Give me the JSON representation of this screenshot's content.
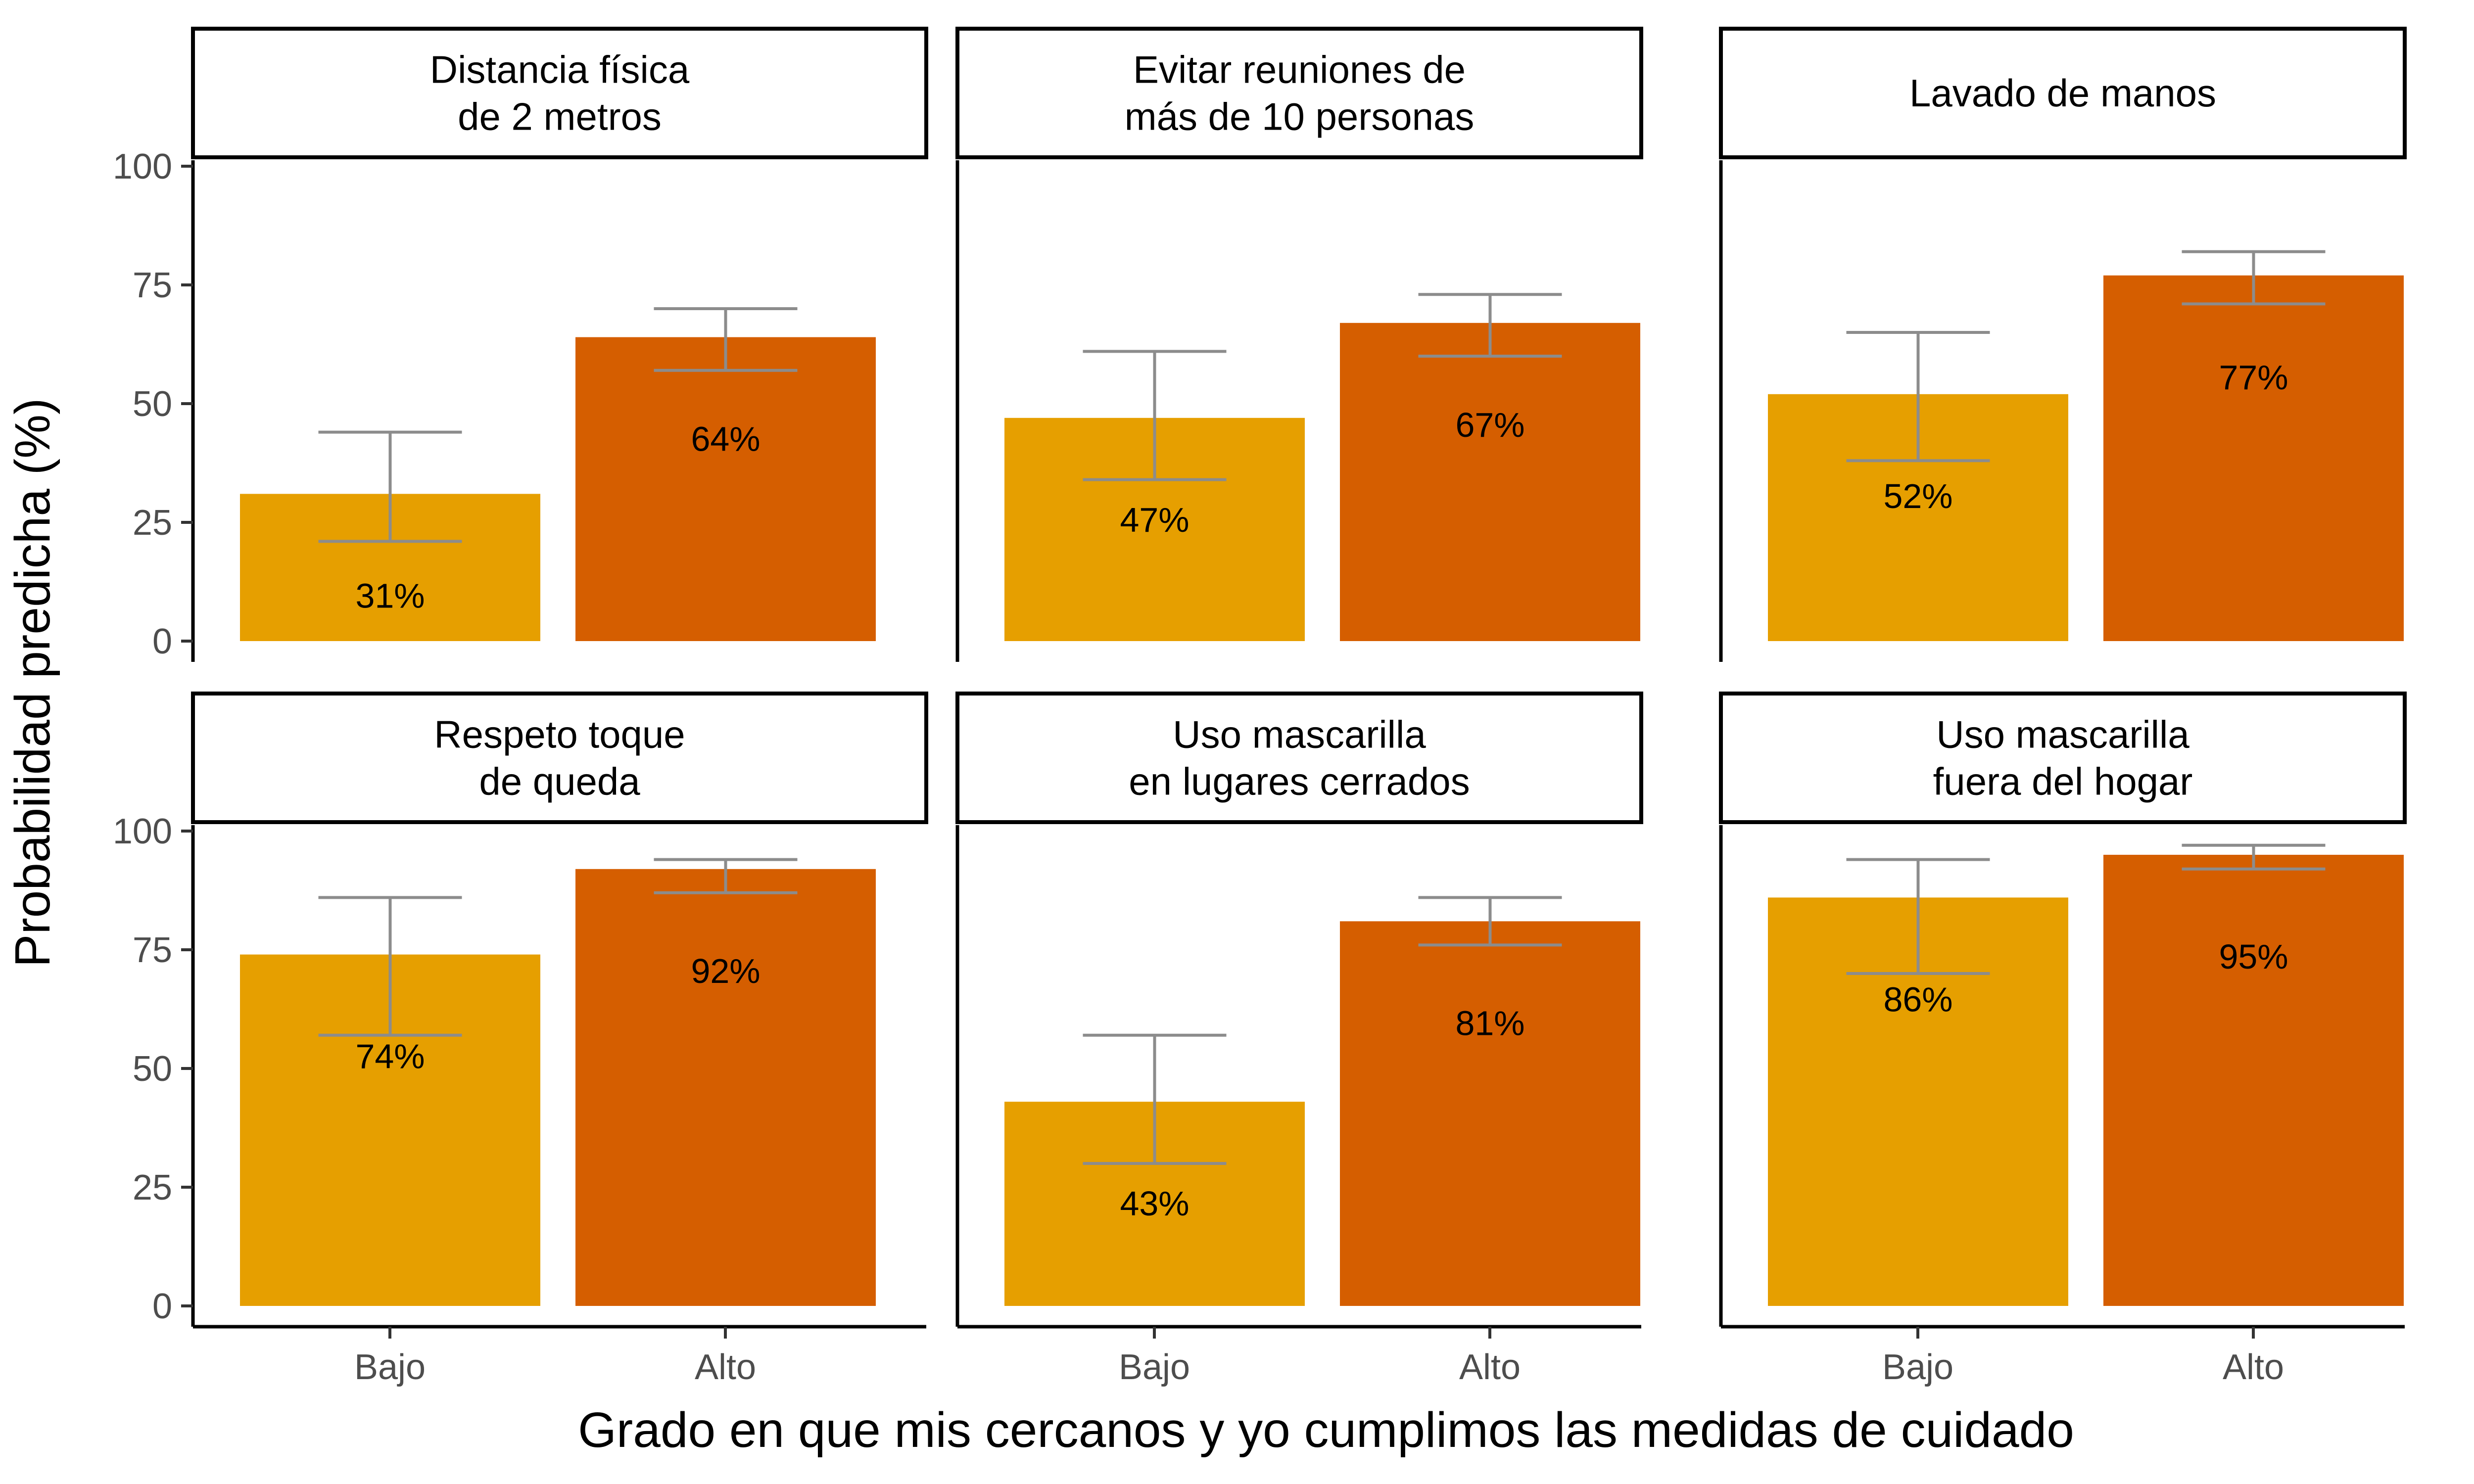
{
  "chart_data": {
    "type": "bar",
    "xlabel": "Grado en que mis cercanos y yo cumplimos las medidas de cuidado",
    "ylabel": "Probabilidad predicha (%)",
    "ylim": [
      0,
      100
    ],
    "yticks": [
      0,
      25,
      50,
      75,
      100
    ],
    "categories": [
      "Bajo",
      "Alto"
    ],
    "colors": {
      "Bajo": "#E69F00",
      "Alto": "#D55E00",
      "errorbar": "#8c8c8c"
    },
    "grid": false,
    "legend": "none",
    "panels": [
      {
        "title": [
          "Distancia física",
          "de 2 metros"
        ],
        "values": [
          31,
          64
        ],
        "labels": [
          "31%",
          "64%"
        ],
        "ci_low": [
          21,
          57
        ],
        "ci_high": [
          44,
          70
        ]
      },
      {
        "title": [
          "Evitar reuniones de",
          "más de 10 personas"
        ],
        "values": [
          47,
          67
        ],
        "labels": [
          "47%",
          "67%"
        ],
        "ci_low": [
          34,
          60
        ],
        "ci_high": [
          61,
          73
        ]
      },
      {
        "title": [
          "Lavado de manos"
        ],
        "values": [
          52,
          77
        ],
        "labels": [
          "52%",
          "77%"
        ],
        "ci_low": [
          38,
          71
        ],
        "ci_high": [
          65,
          82
        ]
      },
      {
        "title": [
          "Respeto toque",
          "de queda"
        ],
        "values": [
          74,
          92
        ],
        "labels": [
          "74%",
          "92%"
        ],
        "ci_low": [
          57,
          87
        ],
        "ci_high": [
          86,
          94
        ]
      },
      {
        "title": [
          "Uso mascarilla",
          "en lugares cerrados"
        ],
        "values": [
          43,
          81
        ],
        "labels": [
          "43%",
          "81%"
        ],
        "ci_low": [
          30,
          76
        ],
        "ci_high": [
          57,
          86
        ]
      },
      {
        "title": [
          "Uso mascarilla",
          "fuera del hogar"
        ],
        "values": [
          86,
          95
        ],
        "labels": [
          "86%",
          "95%"
        ],
        "ci_low": [
          70,
          92
        ],
        "ci_high": [
          94,
          97
        ]
      }
    ]
  }
}
